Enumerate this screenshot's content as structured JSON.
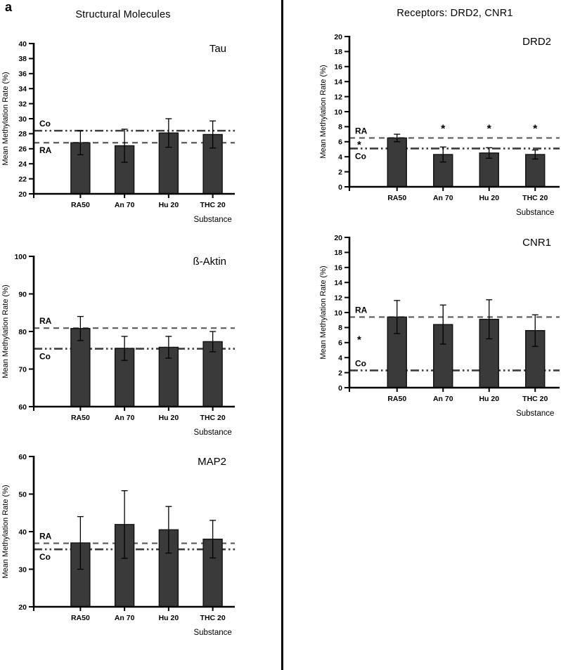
{
  "figure": {
    "label": "a"
  },
  "columns": {
    "left_title": "Structural Molecules",
    "right_title": "Receptors: DRD2, CNR1"
  },
  "colors": {
    "bar_fill": "#3a3a3a",
    "bar_stroke": "#111111",
    "axis": "#000000",
    "ref_dashed": "#5a5a5a",
    "ref_dashdotdot": "#3d3d3d"
  },
  "chart_data": [
    {
      "id": "tau",
      "type": "bar",
      "title": "Tau",
      "ylabel": "Mean Methylation Rate (%)",
      "xlabel": "Substance",
      "categories": [
        "RA50",
        "An 70",
        "Hu 20",
        "THC 20"
      ],
      "values": [
        26.8,
        26.4,
        28.1,
        27.9
      ],
      "errors": [
        1.6,
        2.2,
        1.9,
        1.8
      ],
      "ylim": [
        20,
        40
      ],
      "ytick_step": 2,
      "ref_lines": [
        {
          "label": "Co",
          "value": 28.4,
          "style": "dashdotdot",
          "label_side": "above"
        },
        {
          "label": "RA",
          "value": 26.8,
          "style": "dashed",
          "label_side": "below"
        }
      ],
      "sig_markers": [],
      "left_asterisk": null
    },
    {
      "id": "b-aktin",
      "type": "bar",
      "title": "ß-Aktin",
      "ylabel": "Mean Methylation Rate (%)",
      "xlabel": "Substance",
      "categories": [
        "RA50",
        "An 70",
        "Hu 20",
        "THC 20"
      ],
      "values": [
        80.8,
        75.5,
        75.8,
        77.3
      ],
      "errors": [
        3.2,
        3.2,
        2.9,
        2.7
      ],
      "ylim": [
        60,
        100
      ],
      "ytick_step": 10,
      "ref_lines": [
        {
          "label": "RA",
          "value": 80.9,
          "style": "dashed",
          "label_side": "above"
        },
        {
          "label": "Co",
          "value": 75.4,
          "style": "dashdotdot",
          "label_side": "below"
        }
      ],
      "sig_markers": [],
      "left_asterisk": null
    },
    {
      "id": "map2",
      "type": "bar",
      "title": "MAP2",
      "ylabel": "Mean Methylation Rate (%)",
      "xlabel": "Substance",
      "categories": [
        "RA50",
        "An 70",
        "Hu 20",
        "THC 20"
      ],
      "values": [
        37.0,
        41.9,
        40.5,
        38.0
      ],
      "errors": [
        7.0,
        9.0,
        6.2,
        5.0
      ],
      "ylim": [
        20,
        60
      ],
      "ytick_step": 10,
      "ref_lines": [
        {
          "label": "RA",
          "value": 36.9,
          "style": "dashed",
          "label_side": "above"
        },
        {
          "label": "Co",
          "value": 35.3,
          "style": "dashdotdot",
          "label_side": "below"
        }
      ],
      "sig_markers": [],
      "left_asterisk": null
    },
    {
      "id": "drd2",
      "type": "bar",
      "title": "DRD2",
      "ylabel": "Mean Methylation Rate (%)",
      "xlabel": "Substance",
      "categories": [
        "RA50",
        "An 70",
        "Hu 20",
        "THC 20"
      ],
      "values": [
        6.5,
        4.3,
        4.5,
        4.3
      ],
      "errors": [
        0.5,
        1.0,
        0.7,
        0.6
      ],
      "ylim": [
        0,
        20
      ],
      "ytick_step": 2,
      "ref_lines": [
        {
          "label": "RA",
          "value": 6.5,
          "style": "dashed",
          "label_side": "above"
        },
        {
          "label": "Co",
          "value": 5.1,
          "style": "dashdotdot",
          "label_side": "below"
        }
      ],
      "sig_markers": [
        {
          "bar": 1,
          "value": 7.7,
          "symbol": "*"
        },
        {
          "bar": 2,
          "value": 7.7,
          "symbol": "*"
        },
        {
          "bar": 3,
          "value": 7.7,
          "symbol": "*"
        }
      ],
      "left_asterisk": {
        "symbol": "*",
        "value": 5.6
      }
    },
    {
      "id": "cnr1",
      "type": "bar",
      "title": "CNR1",
      "ylabel": "Mean Methylation Rate (%)",
      "xlabel": "Substance",
      "categories": [
        "RA50",
        "An 70",
        "Hu 20",
        "THC 20"
      ],
      "values": [
        9.4,
        8.4,
        9.1,
        7.6
      ],
      "errors": [
        2.2,
        2.6,
        2.6,
        2.1
      ],
      "ylim": [
        0,
        20
      ],
      "ytick_step": 2,
      "ref_lines": [
        {
          "label": "RA",
          "value": 9.4,
          "style": "dashed",
          "label_side": "above"
        },
        {
          "label": "Co",
          "value": 2.3,
          "style": "dashdotdot",
          "label_side": "above"
        }
      ],
      "sig_markers": [],
      "left_asterisk": {
        "symbol": "*",
        "value": 6.4
      }
    }
  ]
}
